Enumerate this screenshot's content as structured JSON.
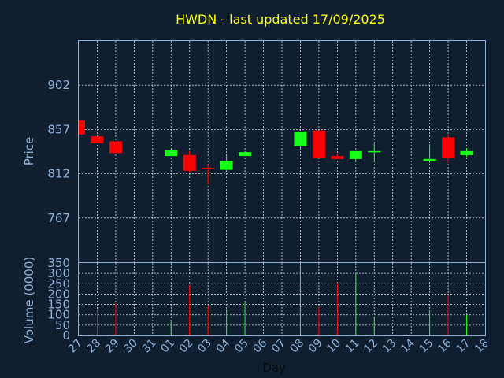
{
  "colors": {
    "background": "#0f1f30",
    "title": "#ffff00",
    "axis_text": "#8fb1d6",
    "frame": "#8fb1d6",
    "grid": "#c9d4e0",
    "up": "#19ff19",
    "down": "#ff0000"
  },
  "chart_data": {
    "type": "candlestick",
    "title": "HWDN - last updated 17/09/2025",
    "x_label": "Day",
    "x_ticks": [
      "27",
      "28",
      "29",
      "30",
      "31",
      "01",
      "02",
      "03",
      "04",
      "05",
      "06",
      "07",
      "08",
      "09",
      "10",
      "11",
      "12",
      "13",
      "14",
      "15",
      "16",
      "17",
      "18"
    ],
    "grid": true,
    "price_panel": {
      "ylabel": "Price",
      "y_ticks": [
        902,
        857,
        812,
        767
      ],
      "ylim": [
        722,
        947
      ]
    },
    "volume_panel": {
      "ylabel": "Volume (0000)",
      "y_ticks": [
        0,
        50,
        100,
        150,
        200,
        250,
        300,
        350
      ],
      "ylim": [
        0,
        350
      ]
    },
    "candles": [
      {
        "day": "27",
        "open": 866,
        "high": 866,
        "low": 852,
        "close": 852
      },
      {
        "day": "28",
        "open": 850,
        "high": 850,
        "low": 843,
        "close": 843
      },
      {
        "day": "29",
        "open": 845,
        "high": 845,
        "low": 833,
        "close": 833
      },
      {
        "day": "01",
        "open": 830,
        "high": 837,
        "low": 830,
        "close": 836
      },
      {
        "day": "02",
        "open": 831,
        "high": 835,
        "low": 813,
        "close": 815
      },
      {
        "day": "03",
        "open": 818,
        "high": 821,
        "low": 801,
        "close": 817
      },
      {
        "day": "04",
        "open": 816,
        "high": 831,
        "low": 815,
        "close": 825
      },
      {
        "day": "05",
        "open": 830,
        "high": 834,
        "low": 830,
        "close": 834
      },
      {
        "day": "08",
        "open": 840,
        "high": 855,
        "low": 837,
        "close": 855
      },
      {
        "day": "09",
        "open": 856,
        "high": 856,
        "low": 828,
        "close": 828
      },
      {
        "day": "10",
        "open": 830,
        "high": 832,
        "low": 827,
        "close": 827
      },
      {
        "day": "11",
        "open": 827,
        "high": 835,
        "low": 825,
        "close": 835
      },
      {
        "day": "12",
        "open": 835,
        "high": 843,
        "low": 824,
        "close": 835
      },
      {
        "day": "15",
        "open": 825,
        "high": 842,
        "low": 823,
        "close": 827
      },
      {
        "day": "16",
        "open": 849,
        "high": 852,
        "low": 823,
        "close": 828
      },
      {
        "day": "17",
        "open": 831,
        "high": 838,
        "low": 829,
        "close": 835
      }
    ],
    "volumes": [
      {
        "day": "27",
        "value": 0
      },
      {
        "day": "28",
        "value": 125
      },
      {
        "day": "29",
        "value": 155
      },
      {
        "day": "01",
        "value": 75
      },
      {
        "day": "02",
        "value": 245
      },
      {
        "day": "03",
        "value": 145
      },
      {
        "day": "04",
        "value": 125
      },
      {
        "day": "05",
        "value": 160
      },
      {
        "day": "08",
        "value": 340
      },
      {
        "day": "09",
        "value": 140
      },
      {
        "day": "10",
        "value": 255
      },
      {
        "day": "11",
        "value": 300
      },
      {
        "day": "12",
        "value": 90
      },
      {
        "day": "15",
        "value": 120
      },
      {
        "day": "16",
        "value": 200
      },
      {
        "day": "17",
        "value": 100
      }
    ]
  }
}
